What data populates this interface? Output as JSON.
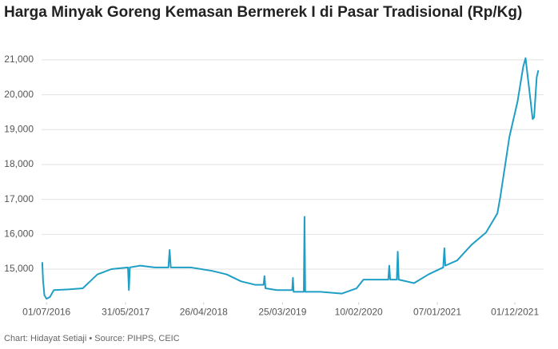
{
  "chart_data": {
    "type": "line",
    "title": "Harga Minyak Goreng Kemasan Bermerek I di Pasar Tradisional (Rp/Kg)",
    "source": "Chart: Hidayat Setiaji • Source: PIHPS, CEIC",
    "x": [
      "13/06/2016",
      "16/06/2016",
      "22/06/2016",
      "01/07/2016",
      "15/07/2016",
      "01/08/2016",
      "01/10/2016",
      "01/12/2016",
      "01/01/2017",
      "01/02/2017",
      "01/04/2017",
      "10/06/2017",
      "14/06/2017",
      "18/06/2017",
      "01/08/2017",
      "01/10/2017",
      "28/11/2017",
      "03/12/2017",
      "08/12/2017",
      "01/03/2018",
      "01/06/2018",
      "01/08/2018",
      "01/10/2018",
      "01/12/2018",
      "04/01/2019",
      "08/01/2019",
      "12/01/2019",
      "01/03/2019",
      "05/05/2019",
      "08/05/2019",
      "11/05/2019",
      "23/06/2019",
      "26/06/2019",
      "29/06/2019",
      "01/09/2019",
      "01/12/2019",
      "01/02/2020",
      "01/03/2020",
      "14/06/2020",
      "18/06/2020",
      "22/06/2020",
      "20/07/2020",
      "24/07/2020",
      "28/07/2020",
      "01/10/2020",
      "01/12/2020",
      "01/02/2021",
      "06/02/2021",
      "10/02/2021",
      "01/04/2021",
      "01/06/2021",
      "01/08/2021",
      "18/09/2021",
      "01/10/2021",
      "08/11/2021",
      "12/12/2021",
      "05/01/2022",
      "15/01/2022",
      "28/01/2022",
      "14/02/2022",
      "20/02/2022",
      "03/03/2022",
      "10/03/2022"
    ],
    "series": [
      {
        "color": "#1f9ec6",
        "values": [
          15200,
          14700,
          14250,
          14150,
          14200,
          14400,
          14420,
          14450,
          14650,
          14850,
          15000,
          15050,
          14400,
          15050,
          15100,
          15050,
          15050,
          15550,
          15050,
          15050,
          14950,
          14850,
          14650,
          14550,
          14550,
          14800,
          14450,
          14400,
          14400,
          14750,
          14350,
          14350,
          16500,
          14350,
          14350,
          14300,
          14450,
          14700,
          14700,
          15100,
          14700,
          14700,
          15500,
          14700,
          14600,
          14850,
          15050,
          15600,
          15100,
          15250,
          15700,
          16050,
          16600,
          17100,
          18800,
          19800,
          20800,
          21050,
          20300,
          19300,
          19350,
          20500,
          20700
        ]
      }
    ],
    "xlim": [
      "10/06/2016",
      "12/03/2022"
    ],
    "xticks": [
      "01/07/2016",
      "31/05/2017",
      "26/04/2018",
      "25/03/2019",
      "10/02/2020",
      "07/01/2021",
      "01/12/2021"
    ],
    "ylim": [
      14050,
      21250
    ],
    "yticks": [
      {
        "value": 15000,
        "label": "15,000"
      },
      {
        "value": 16000,
        "label": "16,000"
      },
      {
        "value": 17000,
        "label": "17,000"
      },
      {
        "value": 18000,
        "label": "18,000"
      },
      {
        "value": 19000,
        "label": "19,000"
      },
      {
        "value": 20000,
        "label": "20,000"
      },
      {
        "value": 21000,
        "label": "21,000"
      }
    ],
    "grid": true
  }
}
